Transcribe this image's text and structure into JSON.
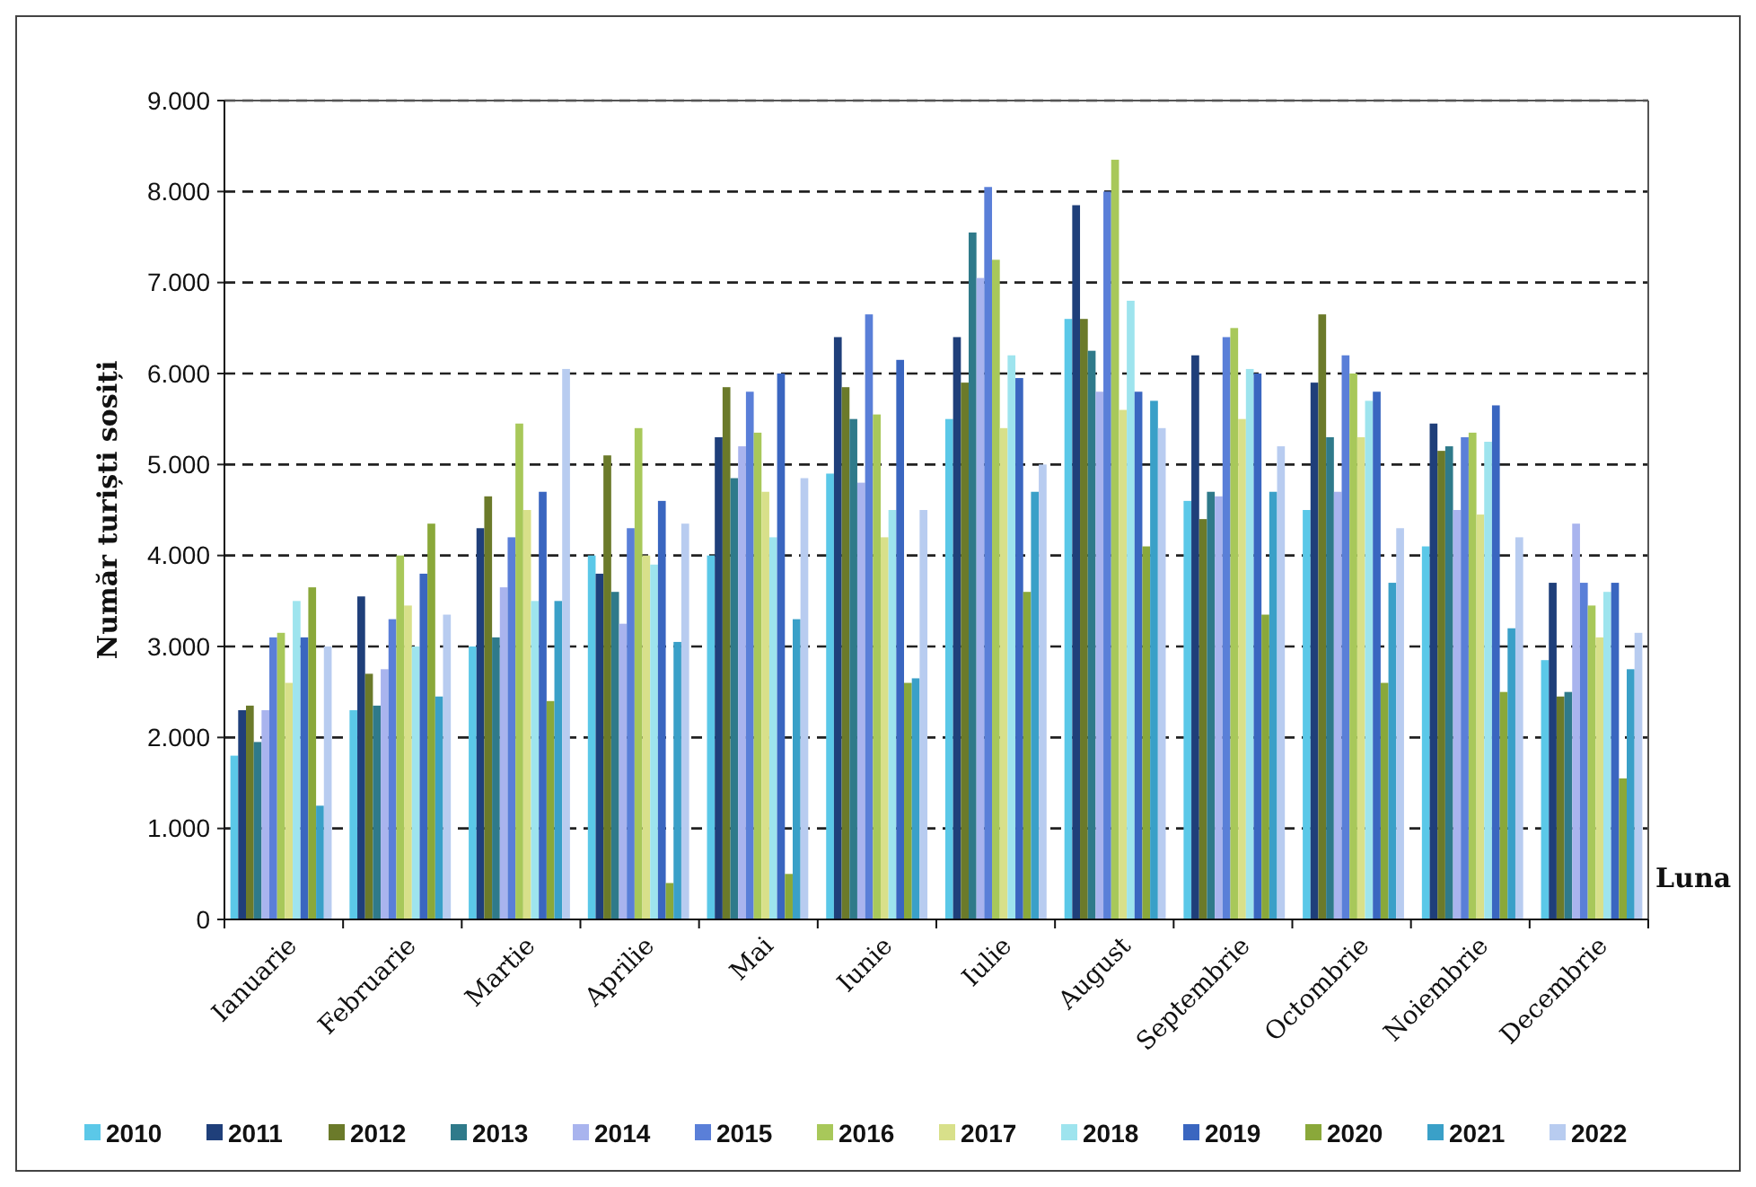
{
  "chart_data": {
    "type": "bar",
    "ylabel": "Număr turiști sosiți",
    "xlabel": "Luna",
    "categories": [
      "Ianuarie",
      "Februarie",
      "Martie",
      "Aprilie",
      "Mai",
      "Iunie",
      "Iulie",
      "August",
      "Septembrie",
      "Octombrie",
      "Noiembrie",
      "Decembrie"
    ],
    "ylim": [
      0,
      9000
    ],
    "yticks": [
      {
        "value": 0,
        "label": "0"
      },
      {
        "value": 1000,
        "label": "1.000"
      },
      {
        "value": 2000,
        "label": "2.000"
      },
      {
        "value": 3000,
        "label": "3.000"
      },
      {
        "value": 4000,
        "label": "4.000"
      },
      {
        "value": 5000,
        "label": "5.000"
      },
      {
        "value": 6000,
        "label": "6.000"
      },
      {
        "value": 7000,
        "label": "7.000"
      },
      {
        "value": 8000,
        "label": "8.000"
      },
      {
        "value": 9000,
        "label": "9.000"
      }
    ],
    "grid": "y",
    "line_style": "dashed",
    "legend": "bottom",
    "series": [
      {
        "name": "2010",
        "color": "#5bc8e8",
        "values": [
          1800,
          2300,
          3000,
          4000,
          4000,
          4900,
          5500,
          6600,
          4600,
          4500,
          4100,
          2850
        ]
      },
      {
        "name": "2011",
        "color": "#1f3f7a",
        "values": [
          2300,
          3550,
          4300,
          3800,
          5300,
          6400,
          6400,
          7850,
          6200,
          5900,
          5450,
          3700
        ]
      },
      {
        "name": "2012",
        "color": "#6b7a2a",
        "values": [
          2350,
          2700,
          4650,
          5100,
          5850,
          5850,
          5900,
          6600,
          4400,
          6650,
          5150,
          2450
        ]
      },
      {
        "name": "2013",
        "color": "#2f7a8a",
        "values": [
          1950,
          2350,
          3100,
          3600,
          4850,
          5500,
          7550,
          6250,
          4700,
          5300,
          5200,
          2500
        ]
      },
      {
        "name": "2014",
        "color": "#a9b4ee",
        "values": [
          2300,
          2750,
          3650,
          3250,
          5200,
          4800,
          7050,
          5800,
          4650,
          4700,
          4500,
          4350
        ]
      },
      {
        "name": "2015",
        "color": "#5a7fd8",
        "values": [
          3100,
          3300,
          4200,
          4300,
          5800,
          6650,
          8050,
          8000,
          6400,
          6200,
          5300,
          3700
        ]
      },
      {
        "name": "2016",
        "color": "#a8c85a",
        "values": [
          3150,
          4000,
          5450,
          5400,
          5350,
          5550,
          7250,
          8350,
          6500,
          6000,
          5350,
          3450
        ]
      },
      {
        "name": "2017",
        "color": "#d8e08a",
        "values": [
          2600,
          3450,
          4500,
          4000,
          4700,
          4200,
          5400,
          5600,
          5500,
          5300,
          4450,
          3100
        ]
      },
      {
        "name": "2018",
        "color": "#9ee4ee",
        "values": [
          3500,
          3000,
          3500,
          3900,
          4200,
          4500,
          6200,
          6800,
          6050,
          5700,
          5250,
          3600
        ]
      },
      {
        "name": "2019",
        "color": "#3a66c0",
        "values": [
          3100,
          3800,
          4700,
          4600,
          6000,
          6150,
          5950,
          5800,
          6000,
          5800,
          5650,
          3700
        ]
      },
      {
        "name": "2020",
        "color": "#8aa83a",
        "values": [
          3650,
          4350,
          2400,
          400,
          500,
          2600,
          3600,
          4100,
          3350,
          2600,
          2500,
          1550
        ]
      },
      {
        "name": "2021",
        "color": "#3aa0c8",
        "values": [
          1250,
          2450,
          3500,
          3050,
          3300,
          2650,
          4700,
          5700,
          4700,
          3700,
          3200,
          2750
        ]
      },
      {
        "name": "2022",
        "color": "#b8ccf0",
        "values": [
          3000,
          3350,
          6050,
          4350,
          4850,
          4500,
          5000,
          5400,
          5200,
          4300,
          4200,
          3150
        ]
      }
    ]
  }
}
